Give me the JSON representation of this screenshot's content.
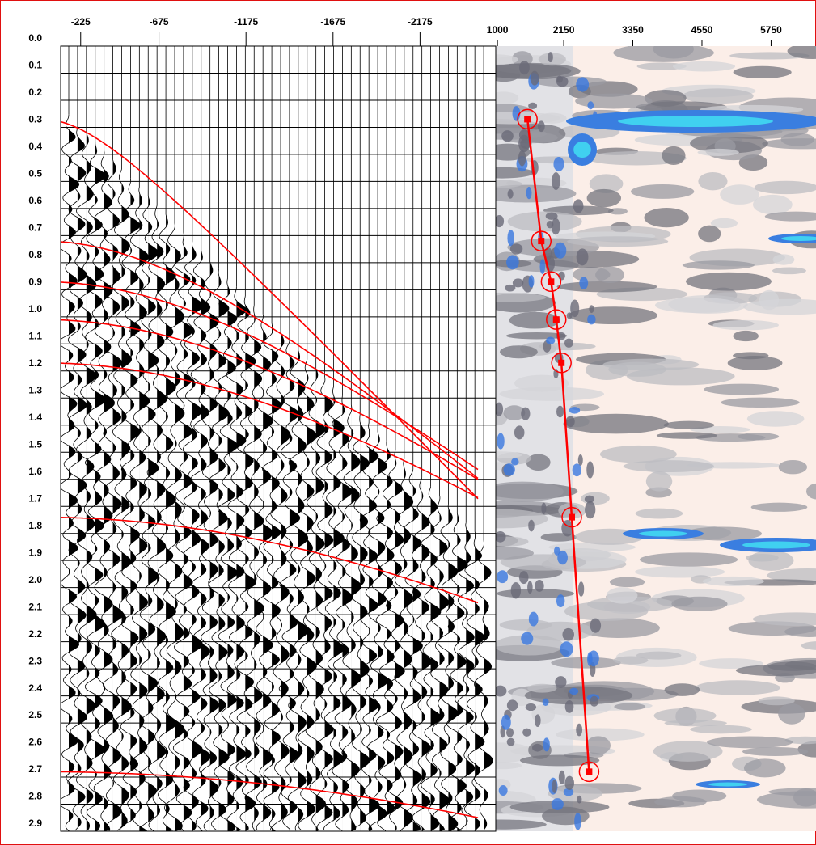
{
  "chart_data": [
    {
      "type": "seismic-gather",
      "xlim": [
        -110,
        -2610
      ],
      "xticks": [
        -225,
        -675,
        -1175,
        -1675,
        -2175
      ],
      "ylim": [
        0,
        2.9
      ],
      "yticks": [
        {
          "value": 0,
          "label": "0.0"
        },
        0.1,
        0.2,
        0.3,
        0.4,
        0.5,
        0.6,
        0.7,
        0.8,
        0.9,
        {
          "value": 1,
          "label": "1.0"
        },
        1.1,
        1.2,
        1.3,
        1.4,
        1.5,
        1.6,
        1.7,
        1.8,
        1.9,
        {
          "value": 2,
          "label": "2.0"
        },
        2.1,
        2.2,
        2.3,
        2.4,
        2.5,
        2.6,
        2.7,
        2.8,
        2.9
      ],
      "grid": true
    },
    {
      "type": "semblance",
      "xlim": [
        970,
        6530
      ],
      "xticks": [
        1000,
        2150,
        3350,
        4550,
        5750
      ],
      "ylim": [
        0,
        2.9
      ],
      "x": [
        1520,
        1760,
        1930,
        2020,
        2110,
        2290,
        2590
      ],
      "values": [
        0.27,
        0.72,
        0.87,
        1.01,
        1.17,
        1.74,
        2.68
      ],
      "color": "#ff0000"
    }
  ]
}
